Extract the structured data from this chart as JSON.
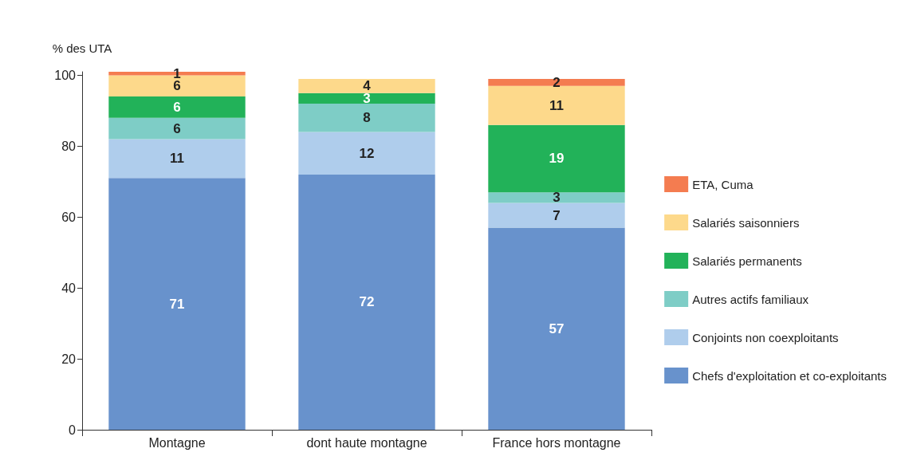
{
  "chart_data": {
    "type": "bar",
    "stacked": true,
    "ylabel": "% des UTA",
    "categories": [
      "Montagne",
      "dont haute montagne",
      "France hors montagne"
    ],
    "series": [
      {
        "name": "Chefs d'exploitation et co-exploitants",
        "color": "#6892cc",
        "values": [
          71,
          72,
          57
        ]
      },
      {
        "name": "Conjoints non coexploitants",
        "color": "#afcdec",
        "values": [
          11,
          12,
          7
        ]
      },
      {
        "name": "Autres actifs familiaux",
        "color": "#7ecdc6",
        "values": [
          6,
          8,
          3
        ]
      },
      {
        "name": "Salariés permanents",
        "color": "#22b259",
        "values": [
          6,
          3,
          19
        ]
      },
      {
        "name": "Salariés saisonniers",
        "color": "#fdd98b",
        "values": [
          6,
          4,
          11
        ]
      },
      {
        "name": "ETA, Cuma",
        "color": "#f47c50",
        "values": [
          1,
          null,
          2
        ]
      }
    ],
    "ylim": [
      0,
      101
    ],
    "yticks": [
      0,
      20,
      40,
      60,
      80,
      100
    ],
    "data_labels": true,
    "grid": false,
    "legend": "right"
  }
}
